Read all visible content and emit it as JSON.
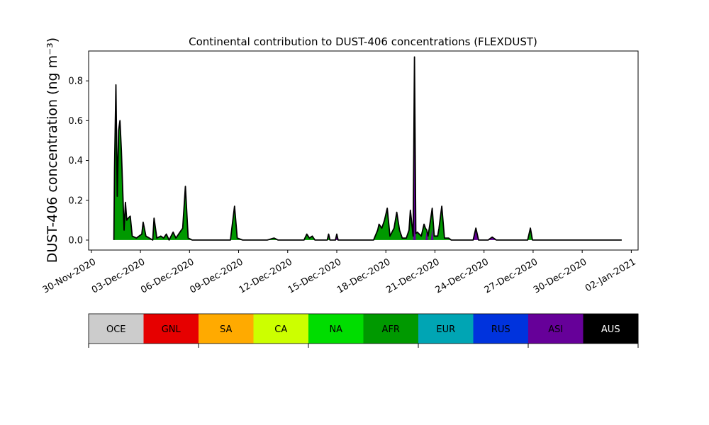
{
  "chart_data": {
    "type": "area",
    "title": "Continental contribution to DUST-406 concentrations (FLEXDUST)",
    "ylabel": "DUST-406 concentration (ng m⁻³)",
    "xlabel": "",
    "xlim": [
      "2020-11-29T20:00",
      "2021-01-02T10:00"
    ],
    "ylim": [
      -0.05,
      0.95
    ],
    "y_ticks": [
      0.0,
      0.2,
      0.4,
      0.6,
      0.8
    ],
    "y_tick_labels": [
      "0.0",
      "0.2",
      "0.4",
      "0.6",
      "0.8"
    ],
    "x_ticks": [
      "2020-11-30",
      "2020-12-03",
      "2020-12-06",
      "2020-12-09",
      "2020-12-12",
      "2020-12-15",
      "2020-12-18",
      "2020-12-21",
      "2020-12-24",
      "2020-12-27",
      "2020-12-30",
      "2021-01-02"
    ],
    "x_tick_labels": [
      "30-Nov-2020",
      "03-Dec-2020",
      "06-Dec-2020",
      "09-Dec-2020",
      "12-Dec-2020",
      "15-Dec-2020",
      "18-Dec-2020",
      "21-Dec-2020",
      "24-Dec-2020",
      "27-Dec-2020",
      "30-Dec-2020",
      "02-Jan-2021"
    ],
    "grid": false,
    "series": [
      {
        "name": "AFR",
        "color": "#009900",
        "points": [
          [
            "2020-12-01T09:00",
            0.0
          ],
          [
            "2020-12-01T10:00",
            0.35
          ],
          [
            "2020-12-01T12:00",
            0.78
          ],
          [
            "2020-12-01T14:00",
            0.22
          ],
          [
            "2020-12-01T16:00",
            0.55
          ],
          [
            "2020-12-01T18:00",
            0.6
          ],
          [
            "2020-12-01T20:00",
            0.45
          ],
          [
            "2020-12-02T00:00",
            0.05
          ],
          [
            "2020-12-02T02:00",
            0.19
          ],
          [
            "2020-12-02T04:00",
            0.1
          ],
          [
            "2020-12-02T06:00",
            0.11
          ],
          [
            "2020-12-02T09:00",
            0.12
          ],
          [
            "2020-12-02T12:00",
            0.02
          ],
          [
            "2020-12-02T18:00",
            0.01
          ],
          [
            "2020-12-03T02:00",
            0.03
          ],
          [
            "2020-12-03T04:00",
            0.09
          ],
          [
            "2020-12-03T08:00",
            0.02
          ],
          [
            "2020-12-03T18:00",
            0.0
          ],
          [
            "2020-12-03T20:00",
            0.11
          ],
          [
            "2020-12-04T00:00",
            0.01
          ],
          [
            "2020-12-04T06:00",
            0.02
          ],
          [
            "2020-12-04T10:00",
            0.01
          ],
          [
            "2020-12-04T14:00",
            0.03
          ],
          [
            "2020-12-04T18:00",
            0.0
          ],
          [
            "2020-12-05T00:00",
            0.04
          ],
          [
            "2020-12-05T04:00",
            0.01
          ],
          [
            "2020-12-05T10:00",
            0.04
          ],
          [
            "2020-12-05T14:00",
            0.06
          ],
          [
            "2020-12-05T18:00",
            0.27
          ],
          [
            "2020-12-05T22:00",
            0.01
          ],
          [
            "2020-12-06T04:00",
            0.0
          ],
          [
            "2020-12-08T12:00",
            0.0
          ],
          [
            "2020-12-08T18:00",
            0.17
          ],
          [
            "2020-12-08T22:00",
            0.01
          ],
          [
            "2020-12-09T06:00",
            0.0
          ],
          [
            "2020-12-10T18:00",
            0.0
          ],
          [
            "2020-12-11T04:00",
            0.01
          ],
          [
            "2020-12-11T10:00",
            0.0
          ],
          [
            "2020-12-13T00:00",
            0.0
          ],
          [
            "2020-12-13T04:00",
            0.03
          ],
          [
            "2020-12-13T08:00",
            0.01
          ],
          [
            "2020-12-13T12:00",
            0.02
          ],
          [
            "2020-12-13T16:00",
            0.0
          ],
          [
            "2020-12-14T10:00",
            0.0
          ],
          [
            "2020-12-14T12:00",
            0.03
          ],
          [
            "2020-12-14T14:00",
            0.0
          ],
          [
            "2020-12-17T06:00",
            0.0
          ],
          [
            "2020-12-17T12:00",
            0.05
          ],
          [
            "2020-12-17T14:00",
            0.08
          ],
          [
            "2020-12-17T18:00",
            0.06
          ],
          [
            "2020-12-17T22:00",
            0.1
          ],
          [
            "2020-12-18T02:00",
            0.16
          ],
          [
            "2020-12-18T06:00",
            0.02
          ],
          [
            "2020-12-18T12:00",
            0.06
          ],
          [
            "2020-12-18T16:00",
            0.14
          ],
          [
            "2020-12-18T20:00",
            0.05
          ],
          [
            "2020-12-19T00:00",
            0.01
          ],
          [
            "2020-12-19T02:00",
            0.01
          ],
          [
            "2020-12-19T06:00",
            0.01
          ],
          [
            "2020-12-19T10:00",
            0.05
          ],
          [
            "2020-12-19T12:00",
            0.15
          ],
          [
            "2020-12-19T16:00",
            0.02
          ],
          [
            "2020-12-19T22:00",
            0.04
          ],
          [
            "2020-12-20T04:00",
            0.02
          ],
          [
            "2020-12-20T08:00",
            0.08
          ],
          [
            "2020-12-20T14:00",
            0.02
          ],
          [
            "2020-12-20T20:00",
            0.16
          ],
          [
            "2020-12-20T23:00",
            0.02
          ],
          [
            "2020-12-21T04:00",
            0.02
          ],
          [
            "2020-12-21T06:00",
            0.06
          ],
          [
            "2020-12-21T10:00",
            0.17
          ],
          [
            "2020-12-21T14:00",
            0.01
          ],
          [
            "2020-12-21T20:00",
            0.01
          ],
          [
            "2020-12-22T00:00",
            0.0
          ],
          [
            "2020-12-24T00:00",
            0.0
          ],
          [
            "2020-12-26T16:00",
            0.0
          ],
          [
            "2020-12-26T20:00",
            0.06
          ],
          [
            "2020-12-26T23:00",
            0.0
          ],
          [
            "2021-01-01T10:00",
            0.0
          ]
        ]
      },
      {
        "name": "ASI",
        "color": "#660099",
        "points": [
          [
            "2020-12-01T09:00",
            0.0
          ],
          [
            "2020-12-14T22:00",
            0.0
          ],
          [
            "2020-12-15T00:00",
            0.03
          ],
          [
            "2020-12-15T02:00",
            0.0
          ],
          [
            "2020-12-19T16:00",
            0.0
          ],
          [
            "2020-12-19T18:00",
            0.92
          ],
          [
            "2020-12-19T20:00",
            0.0
          ],
          [
            "2020-12-20T10:00",
            0.0
          ],
          [
            "2020-12-20T12:00",
            0.05
          ],
          [
            "2020-12-20T14:00",
            0.0
          ],
          [
            "2020-12-20T18:00",
            0.0
          ],
          [
            "2020-12-20T20:00",
            0.06
          ],
          [
            "2020-12-20T22:00",
            0.0
          ],
          [
            "2020-12-23T08:00",
            0.0
          ],
          [
            "2020-12-23T12:00",
            0.06
          ],
          [
            "2020-12-23T16:00",
            0.0
          ],
          [
            "2020-12-24T06:00",
            0.0
          ],
          [
            "2020-12-24T12:00",
            0.015
          ],
          [
            "2020-12-24T18:00",
            0.0
          ],
          [
            "2021-01-01T10:00",
            0.0
          ]
        ]
      },
      {
        "name": "AUS",
        "color": "#000000",
        "points": [
          [
            "2020-12-01T09:00",
            0.0
          ],
          [
            "2021-01-01T10:00",
            0.0
          ]
        ]
      }
    ],
    "total_line_color": "#000000",
    "colorbar": {
      "labels": [
        "OCE",
        "GNL",
        "SA",
        "CA",
        "NA",
        "AFR",
        "EUR",
        "RUS",
        "ASI",
        "AUS"
      ],
      "colors": [
        "#cccccc",
        "#e60000",
        "#ffaa00",
        "#ccff00",
        "#00dd00",
        "#009900",
        "#00a5b4",
        "#0033dd",
        "#660099",
        "#000000"
      ],
      "text_colors": [
        "#000000",
        "#000000",
        "#000000",
        "#000000",
        "#000000",
        "#000000",
        "#000000",
        "#000000",
        "#000000",
        "#ffffff"
      ]
    }
  }
}
